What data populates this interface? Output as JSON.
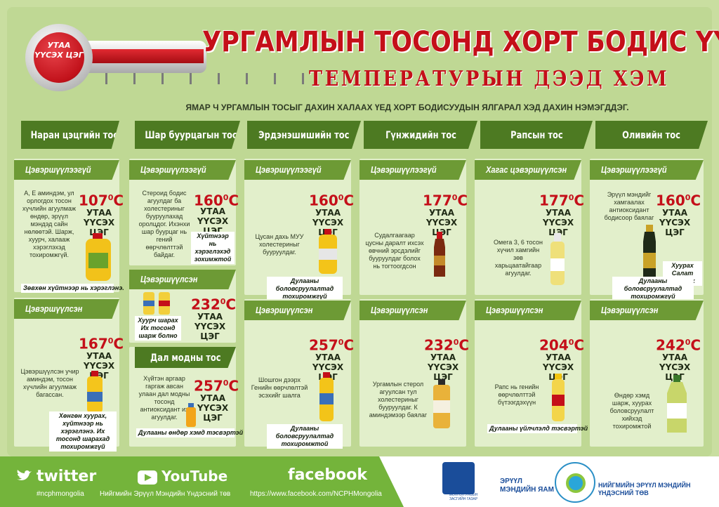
{
  "header": {
    "badge": [
      "УТАА",
      "ҮҮСЭХ ЦЭГ"
    ],
    "title": "УРГАМЛЫН ТОСОНД ХОРТ БОДИС ҮҮСЭХ",
    "subtitle": "ТЕМПЕРАТУРЫН ДЭЭД ХЭМ",
    "question": "ЯМАР Ч УРГАМЛЫН ТОСЫГ ДАХИН ХАЛААХ ҮЕД ХОРТ БОДИСУУДЫН ЯЛГАРАЛ ХЭД ДАХИН НЭМЭГДДЭГ."
  },
  "smoke_label": [
    "УТАА",
    "ҮҮСЭХ ЦЭГ"
  ],
  "columns": [
    {
      "name": "Наран цэцгийн тос"
    },
    {
      "name": "Шар буурцагын тос"
    },
    {
      "name": "Эрдэнэшишийн тос"
    },
    {
      "name": "Гүнжидийн тос"
    },
    {
      "name": "Рапсын тос"
    },
    {
      "name": "Оливийн тос"
    }
  ],
  "cards": {
    "sunflower_raw": {
      "tag": "Цэвэршүүлээгүй",
      "temp": "107",
      "desc": "А, Е аминдэм, ул орлогдох тосон хүчлийн агуулмаж өндөр, эрүүл мэндэд сайн нөлөөтэй. Шарж, хуурч, халааж хэрэглэхэд тохиромжгүй.",
      "use": "Зөвхөн хүйтнээр нь хэрэглэнэ."
    },
    "sunflower_ref": {
      "tag": "Цэвэршүүлсэн",
      "temp": "167",
      "desc": "Цэвэршүүлсэн учир аминдэм, тосон хүчлийн агуулмаж багассан.",
      "use": "Хөнгөн хуурах, хүйтнээр нь хэрэглэнэ. Их тосонд шарахад тохиромжгүй"
    },
    "soy_raw": {
      "tag": "Цэвэршүүлээгүй",
      "temp": "160",
      "desc": "Стероид бодис агуулдаг ба холестериныг бууруулахад оролцдог. Ихэнхи шар буурцаг нь гений өөрчлөлттэй байдаг.",
      "use": "Хүйтнээр нь хэрэглэхэд зохимжтой"
    },
    "soy_ref": {
      "tag": "Цэвэршүүлсэн",
      "temp": "232",
      "use": "Хуурч шарах Их тосонд шарж болно"
    },
    "palm": {
      "tag": "Дал модны тос",
      "temp": "257",
      "desc": "Хүйтэн аргаар гаргаж авсан улаан дал модны тосонд антиоксидант их агуулдаг.",
      "use": "Дулааны өндөр хэмд тэсвэртэй"
    },
    "corn_raw": {
      "tag": "Цэвэршүүлээгүй",
      "temp": "160",
      "desc": "Цусан дахь МУУ холестериныг бууруулдаг.",
      "use": "Дулааны боловсруулалтад тохиромжгүй"
    },
    "corn_ref": {
      "tag": "Цэвэршүүлсэн",
      "temp": "257",
      "desc": "Шошгон дээрх Генийн өөрчлөлтэй эсэхийг шалга",
      "use": "Дулааны боловсруулалтад тохиромжтой"
    },
    "sesame_raw": {
      "tag": "Цэвэршүүлээгүй",
      "temp": "177",
      "desc": "Судалгаагаар цусны даралт ихсэх өвчний эрсдэлийг бууруулдаг болох нь тогтоогдсон"
    },
    "sesame_ref": {
      "tag": "Цэвэршүүлсэн",
      "temp": "232",
      "desc": "Ургамлын стерол агуулсан тул холестериныг бууруулдаг. К аминдэмээр баялаг"
    },
    "rapeseed_half": {
      "tag": "Хагас цэвэршүүлсэн",
      "temp": "177",
      "desc": "Омега 3, 6 тосон хүчил хамгийн зөв харьцаатайгаар агуулдаг."
    },
    "rapeseed_ref": {
      "tag": "Цэвэршүүлсэн",
      "temp": "204",
      "desc": "Рапс нь генийн өөрчлөлттэй бүтээгдэхүүн",
      "use": "Дулааны үйлчлэлд тэсвэртэй"
    },
    "olive_raw": {
      "tag": "Цэвэршүүлээгүй",
      "temp": "160",
      "desc": "Эрүүл мэндийг хамгаалах антиоксидант бодисоор баялаг",
      "use1": "Хуурах Салат амтлах",
      "use2": "Дулааны боловсруулалтад тохиромжгүй"
    },
    "olive_ref": {
      "tag": "Цэвэршүүлсэн",
      "temp": "242",
      "desc": "Өндөр хэмд шарж, хуурах боловсруулалт хийхэд тохиромжтой"
    }
  },
  "footer": {
    "twitter": "twitter",
    "twitter_handle": "#ncphmongolia",
    "youtube": "YouTube",
    "youtube_sub": "Нийгмийн Эрүүл Мэндийн Үндэсний төв",
    "facebook": "facebook",
    "facebook_url": "https://www.facebook.com/NCPHMongolia",
    "gov": "МОНГОЛ УЛСЫН ЗАСГИЙН ГАЗАР",
    "ministry": [
      "ЭРҮҮЛ",
      "МЭНДИЙН ЯАМ"
    ],
    "center": [
      "НИЙГМИЙН ЭРҮҮЛ МЭНДИЙН",
      "ҮНДЭСНИЙ ТӨВ"
    ]
  },
  "colors": {
    "red": "#c40f19",
    "green_dark": "#4d7a22",
    "green_tag": "#6d9a35",
    "footer_green": "#74b43b"
  }
}
